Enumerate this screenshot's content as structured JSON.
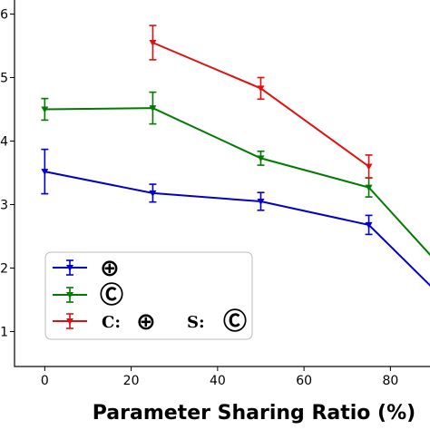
{
  "chart_data": {
    "type": "line",
    "xlabel": "Parameter Sharing Ratio (%)",
    "ylabel": "",
    "xlim": [
      -7,
      90
    ],
    "ylim": [
      0.45,
      6.25
    ],
    "x_ticks": [
      0,
      20,
      40,
      60,
      80
    ],
    "x_tick_labels": [
      "0",
      "20",
      "40",
      "60",
      "80"
    ],
    "y_ticks": [
      1,
      2,
      3,
      4,
      5,
      6
    ],
    "y_tick_labels": [
      "1",
      "2",
      "3",
      "4",
      "5",
      "6"
    ],
    "legend_position": "lower-left",
    "series": [
      {
        "legend": [
          "⊕"
        ],
        "color": "#0000cc",
        "x": [
          0,
          25,
          50,
          75,
          100
        ],
        "y": [
          3.52,
          3.18,
          3.05,
          2.68,
          1.0
        ],
        "err": [
          0.35,
          0.14,
          0.14,
          0.15,
          0.0
        ]
      },
      {
        "legend": [
          "Ⓒ"
        ],
        "color": "#007a00",
        "x": [
          0,
          25,
          50,
          75,
          100
        ],
        "y": [
          4.5,
          4.52,
          3.73,
          3.27,
          1.4
        ],
        "err": [
          0.17,
          0.25,
          0.11,
          0.15,
          0.0
        ]
      },
      {
        "legend": [
          "C:",
          "⊕",
          "S:",
          "Ⓒ"
        ],
        "color": "#dd1111",
        "x": [
          25,
          50,
          75
        ],
        "y": [
          5.55,
          4.83,
          3.6
        ],
        "err": [
          0.27,
          0.17,
          0.18
        ]
      }
    ]
  }
}
